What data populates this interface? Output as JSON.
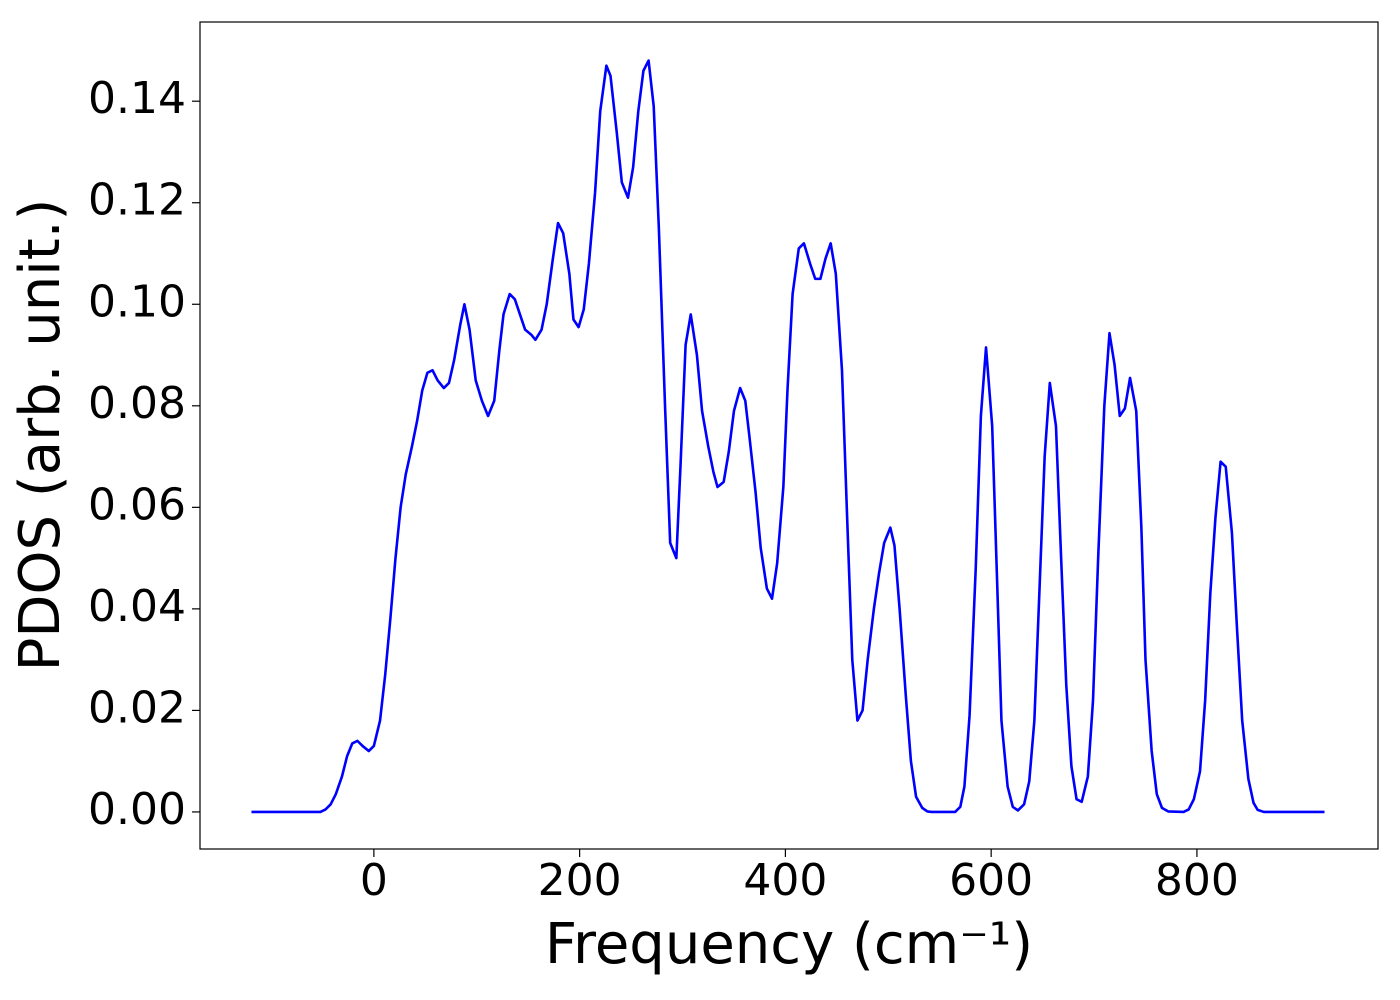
{
  "chart_data": {
    "type": "line",
    "x_label": "Frequency (cm⁻¹)",
    "y_label": "PDOS (arb. unit.)",
    "xlim": [
      -169,
      976
    ],
    "ylim": [
      -0.0073,
      0.1556
    ],
    "xticks": [
      0,
      200,
      400,
      600,
      800
    ],
    "yticks": [
      {
        "value": 0,
        "label": "0.00"
      },
      {
        "value": 0.02,
        "label": "0.02"
      },
      {
        "value": 0.04,
        "label": "0.04"
      },
      {
        "value": 0.06,
        "label": "0.06"
      },
      {
        "value": 0.08,
        "label": "0.08"
      },
      {
        "value": 0.1,
        "label": "0.10"
      },
      {
        "value": 0.12,
        "label": "0.12"
      },
      {
        "value": 0.14,
        "label": "0.14"
      }
    ],
    "grid": false,
    "x": [
      -119,
      -52,
      -47,
      -42,
      -37,
      -31,
      -26,
      -21,
      -16,
      -11,
      -5,
      0,
      6,
      11,
      16,
      21,
      26,
      31,
      37,
      42,
      47,
      52,
      57,
      62,
      68,
      73,
      78,
      84,
      88,
      93,
      99,
      105,
      111,
      117,
      122,
      126,
      132,
      137,
      142,
      147,
      153,
      157,
      163,
      168,
      174,
      179,
      184,
      190,
      194,
      199,
      204,
      209,
      215,
      220,
      226,
      230,
      236,
      241,
      247,
      252,
      257,
      262,
      267,
      272,
      277,
      283,
      288,
      294,
      298,
      303,
      308,
      314,
      319,
      325,
      330,
      334,
      340,
      345,
      350,
      356,
      361,
      365,
      371,
      376,
      382,
      387,
      392,
      398,
      402,
      407,
      413,
      418,
      424,
      429,
      434,
      439,
      444,
      449,
      455,
      460,
      465,
      470,
      475,
      480,
      486,
      491,
      496,
      502,
      506,
      511,
      517,
      522,
      527,
      533,
      538,
      542,
      565,
      570,
      574,
      579,
      585,
      590,
      595,
      601,
      606,
      610,
      616,
      621,
      626,
      632,
      637,
      642,
      647,
      652,
      657,
      663,
      668,
      673,
      678,
      683,
      688,
      694,
      699,
      704,
      710,
      715,
      720,
      725,
      730,
      735,
      741,
      746,
      750,
      756,
      761,
      766,
      772,
      787,
      792,
      797,
      803,
      808,
      813,
      818,
      823,
      828,
      834,
      839,
      844,
      850,
      855,
      859,
      865,
      924
    ],
    "series": [
      {
        "color": "#0000ff",
        "values": [
          0,
          0,
          0.0005,
          0.0015,
          0.0035,
          0.007,
          0.011,
          0.0135,
          0.014,
          0.013,
          0.012,
          0.013,
          0.018,
          0.027,
          0.038,
          0.05,
          0.06,
          0.0665,
          0.072,
          0.077,
          0.083,
          0.0865,
          0.087,
          0.085,
          0.0835,
          0.0845,
          0.089,
          0.096,
          0.1,
          0.095,
          0.085,
          0.081,
          0.078,
          0.081,
          0.091,
          0.098,
          0.102,
          0.101,
          0.098,
          0.095,
          0.094,
          0.093,
          0.095,
          0.1,
          0.109,
          0.116,
          0.114,
          0.106,
          0.097,
          0.0955,
          0.099,
          0.108,
          0.122,
          0.138,
          0.147,
          0.145,
          0.134,
          0.124,
          0.121,
          0.127,
          0.138,
          0.146,
          0.148,
          0.139,
          0.115,
          0.08,
          0.053,
          0.05,
          0.068,
          0.092,
          0.098,
          0.09,
          0.079,
          0.072,
          0.067,
          0.064,
          0.065,
          0.071,
          0.079,
          0.0835,
          0.081,
          0.074,
          0.063,
          0.052,
          0.044,
          0.042,
          0.049,
          0.064,
          0.083,
          0.102,
          0.111,
          0.112,
          0.108,
          0.105,
          0.105,
          0.109,
          0.112,
          0.106,
          0.087,
          0.058,
          0.03,
          0.018,
          0.02,
          0.03,
          0.04,
          0.047,
          0.053,
          0.056,
          0.0525,
          0.04,
          0.023,
          0.01,
          0.003,
          0.0008,
          0.0001,
          0,
          0,
          0.001,
          0.005,
          0.019,
          0.048,
          0.078,
          0.0915,
          0.076,
          0.044,
          0.018,
          0.005,
          0.001,
          0.0003,
          0.0015,
          0.006,
          0.018,
          0.044,
          0.07,
          0.0845,
          0.076,
          0.05,
          0.025,
          0.009,
          0.0025,
          0.002,
          0.007,
          0.022,
          0.05,
          0.08,
          0.0943,
          0.088,
          0.078,
          0.0795,
          0.0855,
          0.079,
          0.056,
          0.03,
          0.012,
          0.0035,
          0.0008,
          0.0001,
          0,
          0.0005,
          0.0025,
          0.008,
          0.022,
          0.043,
          0.058,
          0.069,
          0.068,
          0.055,
          0.036,
          0.018,
          0.0065,
          0.0018,
          0.0004,
          0,
          0
        ]
      }
    ]
  }
}
